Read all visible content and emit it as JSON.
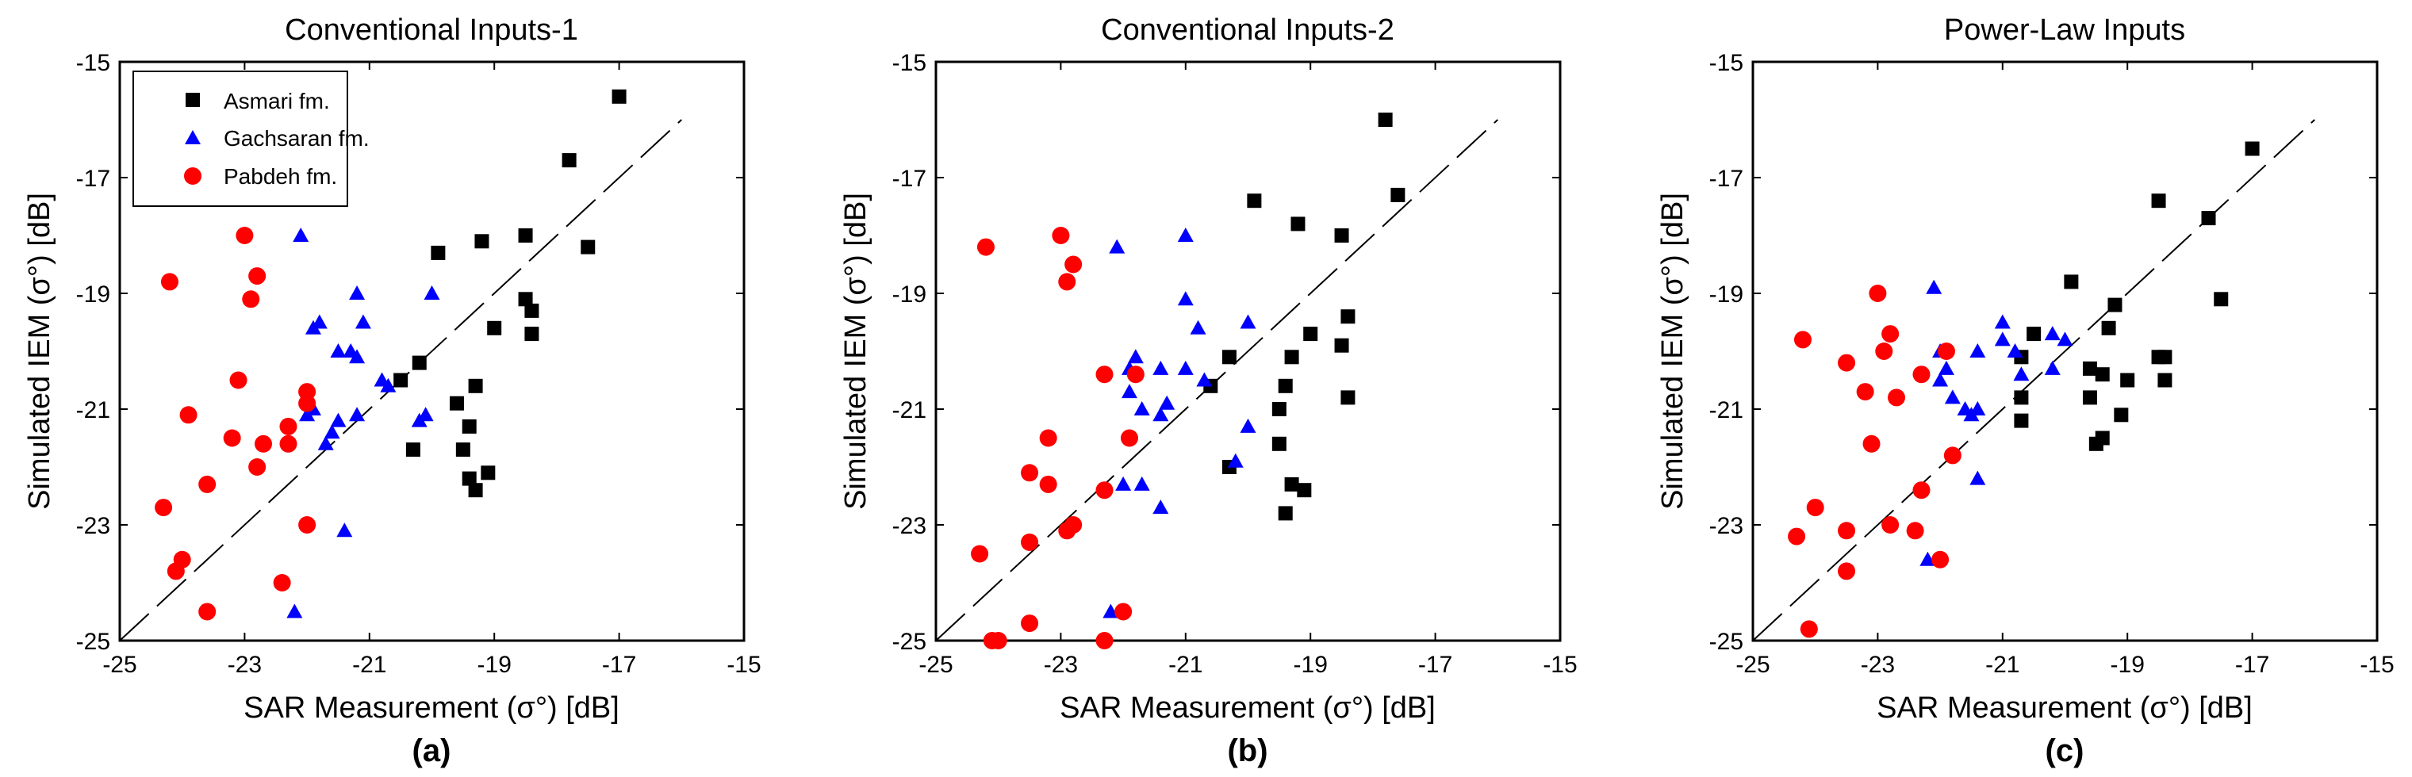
{
  "colors": {
    "asmari": "#000000",
    "gachsaran": "#0000ff",
    "pabdeh": "#ff0000",
    "axis": "#000000",
    "background": "#ffffff"
  },
  "legend": {
    "position": "top-left of panel (a)",
    "entries": [
      {
        "name": "Asmari fm.",
        "marker": "square",
        "color": "#000000"
      },
      {
        "name": "Gachsaran fm.",
        "marker": "triangle",
        "color": "#0000ff"
      },
      {
        "name": "Pabdeh fm.",
        "marker": "circle",
        "color": "#ff0000"
      }
    ]
  },
  "chart_data": [
    {
      "type": "scatter",
      "panel": "(a)",
      "title": "Conventional Inputs-1",
      "xlabel": "SAR Measurement (σ°) [dB]",
      "ylabel": "Simulated IEM (σ°) [dB]",
      "xlim": [
        -25,
        -15
      ],
      "ylim": [
        -25,
        -15
      ],
      "xticks": [
        -25,
        -23,
        -21,
        -19,
        -17,
        -15
      ],
      "yticks": [
        -25,
        -23,
        -21,
        -19,
        -17,
        -15
      ],
      "reference_line": "1:1 dashed",
      "series": [
        {
          "name": "Asmari fm.",
          "points": [
            [
              -17.0,
              -15.6
            ],
            [
              -17.8,
              -16.7
            ],
            [
              -17.5,
              -18.2
            ],
            [
              -18.5,
              -18.0
            ],
            [
              -19.2,
              -18.1
            ],
            [
              -19.9,
              -18.3
            ],
            [
              -18.5,
              -19.1
            ],
            [
              -18.4,
              -19.3
            ],
            [
              -19.0,
              -19.6
            ],
            [
              -18.4,
              -19.7
            ],
            [
              -20.2,
              -20.2
            ],
            [
              -20.5,
              -20.5
            ],
            [
              -19.3,
              -20.6
            ],
            [
              -19.6,
              -20.9
            ],
            [
              -19.4,
              -21.3
            ],
            [
              -19.5,
              -21.7
            ],
            [
              -20.3,
              -21.7
            ],
            [
              -19.1,
              -22.1
            ],
            [
              -19.4,
              -22.2
            ],
            [
              -19.3,
              -22.4
            ]
          ]
        },
        {
          "name": "Gachsaran fm.",
          "points": [
            [
              -22.1,
              -18.0
            ],
            [
              -20.0,
              -19.0
            ],
            [
              -21.2,
              -19.0
            ],
            [
              -21.1,
              -19.5
            ],
            [
              -21.8,
              -19.5
            ],
            [
              -21.9,
              -19.6
            ],
            [
              -21.5,
              -20.0
            ],
            [
              -21.3,
              -20.0
            ],
            [
              -21.2,
              -20.1
            ],
            [
              -20.8,
              -20.5
            ],
            [
              -20.7,
              -20.6
            ],
            [
              -20.1,
              -21.1
            ],
            [
              -20.2,
              -21.2
            ],
            [
              -21.2,
              -21.1
            ],
            [
              -21.5,
              -21.2
            ],
            [
              -21.6,
              -21.4
            ],
            [
              -21.7,
              -21.6
            ],
            [
              -21.9,
              -21.0
            ],
            [
              -22.0,
              -21.1
            ],
            [
              -21.4,
              -23.1
            ],
            [
              -22.2,
              -24.5
            ]
          ]
        },
        {
          "name": "Pabdeh fm.",
          "points": [
            [
              -23.0,
              -18.0
            ],
            [
              -22.8,
              -18.7
            ],
            [
              -24.2,
              -18.8
            ],
            [
              -22.9,
              -19.1
            ],
            [
              -23.1,
              -20.5
            ],
            [
              -22.0,
              -20.7
            ],
            [
              -22.0,
              -20.9
            ],
            [
              -22.3,
              -21.3
            ],
            [
              -23.9,
              -21.1
            ],
            [
              -23.2,
              -21.5
            ],
            [
              -22.7,
              -21.6
            ],
            [
              -22.3,
              -21.6
            ],
            [
              -23.6,
              -22.3
            ],
            [
              -22.8,
              -22.0
            ],
            [
              -24.3,
              -22.7
            ],
            [
              -22.0,
              -23.0
            ],
            [
              -24.0,
              -23.6
            ],
            [
              -24.1,
              -23.8
            ],
            [
              -22.4,
              -24.0
            ],
            [
              -23.6,
              -24.5
            ]
          ]
        }
      ]
    },
    {
      "type": "scatter",
      "panel": "(b)",
      "title": "Conventional Inputs-2",
      "xlabel": "SAR Measurement (σ°) [dB]",
      "ylabel": "Simulated IEM (σ°) [dB]",
      "xlim": [
        -25,
        -15
      ],
      "ylim": [
        -25,
        -15
      ],
      "xticks": [
        -25,
        -23,
        -21,
        -19,
        -17,
        -15
      ],
      "yticks": [
        -25,
        -23,
        -21,
        -19,
        -17,
        -15
      ],
      "reference_line": "1:1 dashed",
      "series": [
        {
          "name": "Asmari fm.",
          "points": [
            [
              -17.8,
              -16.0
            ],
            [
              -17.6,
              -17.3
            ],
            [
              -19.9,
              -17.4
            ],
            [
              -19.2,
              -17.8
            ],
            [
              -18.5,
              -18.0
            ],
            [
              -18.4,
              -19.4
            ],
            [
              -19.0,
              -19.7
            ],
            [
              -18.5,
              -19.9
            ],
            [
              -19.3,
              -20.1
            ],
            [
              -20.3,
              -20.1
            ],
            [
              -19.4,
              -20.6
            ],
            [
              -20.6,
              -20.6
            ],
            [
              -18.4,
              -20.8
            ],
            [
              -19.5,
              -21.0
            ],
            [
              -19.5,
              -21.6
            ],
            [
              -20.3,
              -22.0
            ],
            [
              -19.3,
              -22.3
            ],
            [
              -19.1,
              -22.4
            ],
            [
              -19.4,
              -22.8
            ]
          ]
        },
        {
          "name": "Gachsaran fm.",
          "points": [
            [
              -22.1,
              -18.2
            ],
            [
              -21.0,
              -18.0
            ],
            [
              -21.0,
              -19.1
            ],
            [
              -20.8,
              -19.6
            ],
            [
              -20.0,
              -19.5
            ],
            [
              -21.8,
              -20.1
            ],
            [
              -21.9,
              -20.3
            ],
            [
              -21.4,
              -20.3
            ],
            [
              -21.0,
              -20.3
            ],
            [
              -20.7,
              -20.5
            ],
            [
              -21.9,
              -20.7
            ],
            [
              -21.3,
              -20.9
            ],
            [
              -21.7,
              -21.0
            ],
            [
              -21.4,
              -21.1
            ],
            [
              -20.0,
              -21.3
            ],
            [
              -20.2,
              -21.9
            ],
            [
              -22.0,
              -22.3
            ],
            [
              -21.7,
              -22.3
            ],
            [
              -21.4,
              -22.7
            ],
            [
              -22.2,
              -24.5
            ]
          ]
        },
        {
          "name": "Pabdeh fm.",
          "points": [
            [
              -24.2,
              -18.2
            ],
            [
              -23.0,
              -18.0
            ],
            [
              -22.8,
              -18.5
            ],
            [
              -22.9,
              -18.8
            ],
            [
              -22.3,
              -20.4
            ],
            [
              -21.8,
              -20.4
            ],
            [
              -23.2,
              -21.5
            ],
            [
              -21.9,
              -21.5
            ],
            [
              -23.5,
              -22.1
            ],
            [
              -23.2,
              -22.3
            ],
            [
              -22.3,
              -22.4
            ],
            [
              -22.8,
              -23.0
            ],
            [
              -22.9,
              -23.1
            ],
            [
              -23.5,
              -23.3
            ],
            [
              -24.3,
              -23.5
            ],
            [
              -23.5,
              -24.7
            ],
            [
              -22.0,
              -24.5
            ],
            [
              -24.1,
              -25.0
            ],
            [
              -24.0,
              -25.0
            ],
            [
              -22.3,
              -25.0
            ]
          ]
        }
      ]
    },
    {
      "type": "scatter",
      "panel": "(c)",
      "title": "Power-Law Inputs",
      "xlabel": "SAR Measurement (σ°) [dB]",
      "ylabel": "Simulated IEM (σ°) [dB]",
      "xlim": [
        -25,
        -15
      ],
      "ylim": [
        -25,
        -15
      ],
      "xticks": [
        -25,
        -23,
        -21,
        -19,
        -17,
        -15
      ],
      "yticks": [
        -25,
        -23,
        -21,
        -19,
        -17,
        -15
      ],
      "reference_line": "1:1 dashed",
      "series": [
        {
          "name": "Asmari fm.",
          "points": [
            [
              -17.0,
              -16.5
            ],
            [
              -18.5,
              -17.4
            ],
            [
              -17.7,
              -17.7
            ],
            [
              -17.5,
              -19.1
            ],
            [
              -19.9,
              -18.8
            ],
            [
              -19.2,
              -19.2
            ],
            [
              -19.3,
              -19.6
            ],
            [
              -20.5,
              -19.7
            ],
            [
              -20.7,
              -20.1
            ],
            [
              -18.5,
              -20.1
            ],
            [
              -18.4,
              -20.1
            ],
            [
              -19.6,
              -20.3
            ],
            [
              -19.4,
              -20.4
            ],
            [
              -18.4,
              -20.5
            ],
            [
              -19.0,
              -20.5
            ],
            [
              -19.6,
              -20.8
            ],
            [
              -20.7,
              -20.8
            ],
            [
              -19.1,
              -21.1
            ],
            [
              -20.7,
              -21.2
            ],
            [
              -19.4,
              -21.5
            ],
            [
              -19.5,
              -21.6
            ]
          ]
        },
        {
          "name": "Gachsaran fm.",
          "points": [
            [
              -22.1,
              -18.9
            ],
            [
              -21.0,
              -19.5
            ],
            [
              -20.2,
              -19.7
            ],
            [
              -20.0,
              -19.8
            ],
            [
              -21.0,
              -19.8
            ],
            [
              -20.8,
              -20.0
            ],
            [
              -21.4,
              -20.0
            ],
            [
              -22.0,
              -20.0
            ],
            [
              -21.9,
              -20.3
            ],
            [
              -20.2,
              -20.3
            ],
            [
              -20.7,
              -20.4
            ],
            [
              -22.0,
              -20.5
            ],
            [
              -21.8,
              -20.8
            ],
            [
              -21.6,
              -21.0
            ],
            [
              -21.4,
              -21.0
            ],
            [
              -21.5,
              -21.1
            ],
            [
              -21.4,
              -22.2
            ],
            [
              -22.2,
              -23.6
            ]
          ]
        },
        {
          "name": "Pabdeh fm.",
          "points": [
            [
              -23.0,
              -19.0
            ],
            [
              -22.8,
              -19.7
            ],
            [
              -24.2,
              -19.8
            ],
            [
              -22.9,
              -20.0
            ],
            [
              -21.9,
              -20.0
            ],
            [
              -23.5,
              -20.2
            ],
            [
              -22.3,
              -20.4
            ],
            [
              -23.2,
              -20.7
            ],
            [
              -22.7,
              -20.8
            ],
            [
              -21.8,
              -21.8
            ],
            [
              -23.1,
              -21.6
            ],
            [
              -22.3,
              -22.4
            ],
            [
              -24.0,
              -22.7
            ],
            [
              -22.8,
              -23.0
            ],
            [
              -22.4,
              -23.1
            ],
            [
              -23.5,
              -23.1
            ],
            [
              -24.3,
              -23.2
            ],
            [
              -22.0,
              -23.6
            ],
            [
              -23.5,
              -23.8
            ],
            [
              -24.1,
              -24.8
            ]
          ]
        }
      ]
    }
  ]
}
